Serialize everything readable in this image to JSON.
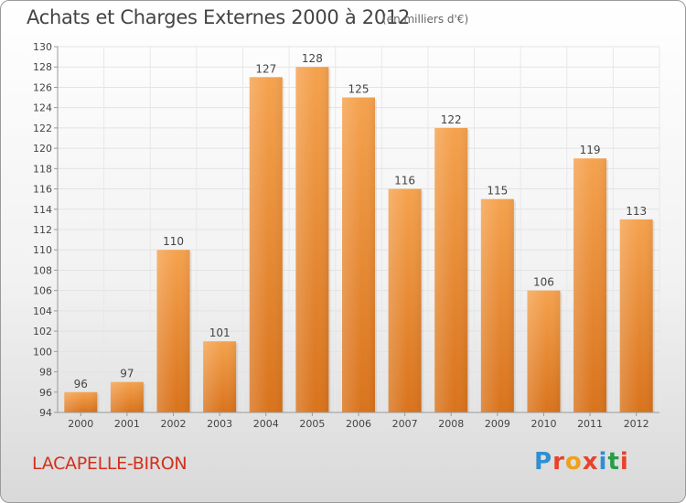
{
  "header": {
    "title": "Achats et Charges Externes 2000 à 2012",
    "unit": "(en milliers d'€)"
  },
  "footer": {
    "commune": "LACAPELLE-BIRON",
    "logo": {
      "text": "Proxiti",
      "colors": [
        "#2f8fd0",
        "#e8422b",
        "#f0a01d",
        "#e8422b",
        "#2f8fd0",
        "#2a9c48",
        "#e8422b"
      ]
    }
  },
  "chart_data": {
    "type": "bar",
    "title": "Achats et Charges Externes 2000 à 2012",
    "subtitle": "(en milliers d'€)",
    "xlabel": "",
    "ylabel": "",
    "categories": [
      "2000",
      "2001",
      "2002",
      "2003",
      "2004",
      "2005",
      "2006",
      "2007",
      "2008",
      "2009",
      "2010",
      "2011",
      "2012"
    ],
    "values": [
      96,
      97,
      110,
      101,
      127,
      128,
      125,
      116,
      122,
      115,
      106,
      119,
      113
    ],
    "ylim": [
      94,
      130
    ],
    "yticks": [
      94,
      96,
      98,
      100,
      102,
      104,
      106,
      108,
      110,
      112,
      114,
      116,
      118,
      120,
      122,
      124,
      126,
      128,
      130
    ],
    "grid": true,
    "legend": "none",
    "bar_color_top": "#f5a24e",
    "bar_color_bottom": "#d9731c"
  }
}
